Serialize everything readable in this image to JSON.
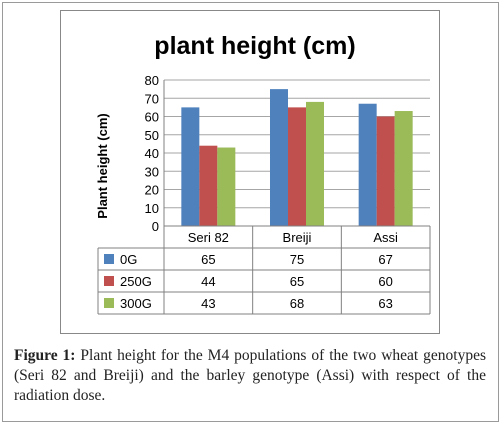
{
  "chart_data": {
    "type": "bar",
    "title": "plant height (cm)",
    "ylabel": "Plant height (cm)",
    "xlabel": "",
    "ylim": [
      0,
      80
    ],
    "yticks": [
      0,
      10,
      20,
      30,
      40,
      50,
      60,
      70,
      80
    ],
    "categories": [
      "Seri 82",
      "Breiji",
      "Assi"
    ],
    "series": [
      {
        "name": "0G",
        "values": [
          65,
          75,
          67
        ],
        "color": "#4F81BD"
      },
      {
        "name": "250G",
        "values": [
          44,
          65,
          60
        ],
        "color": "#C0504D"
      },
      {
        "name": "300G",
        "values": [
          43,
          68,
          63
        ],
        "color": "#9BBB59"
      }
    ],
    "grid": true,
    "legend": "data-table"
  },
  "caption": {
    "label": "Figure 1:",
    "text": "Plant height for the M4 populations of the two wheat genotypes (Seri 82 and Breiji) and the barley genotype (Assi) with respect of the radiation dose."
  }
}
